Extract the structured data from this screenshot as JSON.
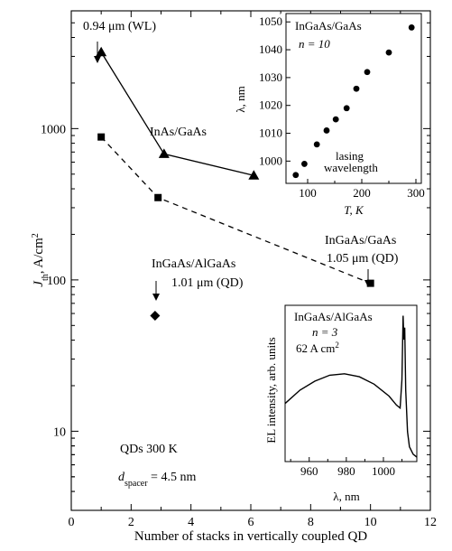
{
  "chart_data": [
    {
      "type": "line",
      "xlabel": "Number of stacks in vertically coupled QD",
      "ylabel_main": "J",
      "ylabel_sub": "th",
      "ylabel_unit": ", A/cm",
      "ylabel_sup": "2",
      "xlim": [
        0,
        12
      ],
      "ylim": [
        3,
        6000
      ],
      "y_scale": "log",
      "x_ticks": [
        0,
        2,
        4,
        6,
        8,
        10,
        12
      ],
      "x_tick_labels": [
        "0",
        "2",
        "4",
        "6",
        "8",
        "10",
        "12"
      ],
      "y_ticks": [
        10,
        100,
        1000
      ],
      "y_tick_labels": [
        "10",
        "100",
        "1000"
      ],
      "series": [
        {
          "name": "InAs/GaAs",
          "marker": "triangle",
          "line": "solid",
          "points": [
            [
              1,
              3200
            ],
            [
              3.1,
              680
            ],
            [
              6.1,
              490
            ]
          ]
        },
        {
          "name": "",
          "marker": "square",
          "line": "dashed",
          "points": [
            [
              1,
              880
            ],
            [
              2.9,
              350
            ],
            [
              10,
              95
            ]
          ]
        },
        {
          "name": "InGaAs/AlGaAs",
          "marker": "diamond",
          "line": "none",
          "points": [
            [
              2.8,
              58
            ]
          ]
        }
      ],
      "annotations": {
        "wl_label": "0.94 μm (WL)",
        "inas_label": "InAs/GaAs",
        "ingaas_algaas_label": "InGaAs/AlGaAs",
        "ingaas_algaas_wavelength": "1.01 μm (QD)",
        "ingaas_gaas_label": "InGaAs/GaAs",
        "ingaas_gaas_wavelength": "1.05 μm (QD)",
        "qds_temp": "QDs 300 K",
        "dspacer_d": "d",
        "dspacer_sub": "spacer",
        "dspacer_value": " = 4.5 nm"
      }
    },
    {
      "type": "scatter",
      "title": "InGaAs/GaAs",
      "n_label": "n = 10",
      "note_line1": "lasing",
      "note_line2": "wavelength",
      "xlabel": "T, K",
      "ylabel": "λ, nm",
      "xlim": [
        60,
        310
      ],
      "ylim": [
        992,
        1053
      ],
      "x_ticks": [
        100,
        200,
        300
      ],
      "x_tick_labels": [
        "100",
        "200",
        "300"
      ],
      "y_ticks": [
        1000,
        1010,
        1020,
        1030,
        1040,
        1050
      ],
      "y_tick_labels": [
        "1000",
        "1010",
        "1020",
        "1030",
        "1040",
        "1050"
      ],
      "x": [
        78,
        94,
        117,
        135,
        152,
        172,
        190,
        210,
        250,
        292
      ],
      "y": [
        995,
        999,
        1006,
        1011,
        1015,
        1019,
        1026,
        1032,
        1039,
        1048
      ]
    },
    {
      "type": "line",
      "title": "InGaAs/AlGaAs",
      "n_label": "n = 3",
      "current_value": "62 A cm",
      "current_sup": "2",
      "xlabel": "λ, nm",
      "ylabel": "EL intensity, arb. units",
      "xlim": [
        947,
        1018
      ],
      "ylim": [
        0,
        1.05
      ],
      "x_ticks": [
        960,
        980,
        1000
      ],
      "x_tick_labels": [
        "960",
        "980",
        "1000"
      ],
      "x": [
        947,
        955,
        963,
        971,
        979,
        987,
        995,
        1003,
        1007,
        1009,
        1010,
        1010.6,
        1011,
        1011.5,
        1012,
        1013,
        1014,
        1016,
        1018
      ],
      "y": [
        0.39,
        0.48,
        0.54,
        0.58,
        0.59,
        0.57,
        0.52,
        0.44,
        0.38,
        0.36,
        0.55,
        0.98,
        0.82,
        0.9,
        0.48,
        0.2,
        0.1,
        0.05,
        0.03
      ]
    }
  ]
}
